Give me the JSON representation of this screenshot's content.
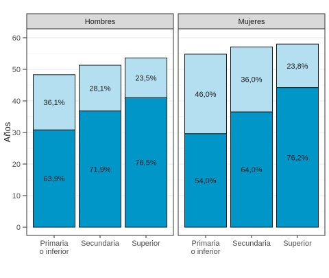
{
  "chart_data": {
    "type": "bar",
    "stacked": true,
    "facets": [
      "Hombres",
      "Mujeres"
    ],
    "categories": [
      "Primaria\no inferior",
      "Secundaria",
      "Superior"
    ],
    "ylabel": "Años",
    "ylim": [
      0,
      62
    ],
    "yticks": [
      0,
      10,
      20,
      30,
      40,
      50,
      60
    ],
    "grid": true,
    "colors": {
      "bottom": "#0096c8",
      "top": "#b4dff0",
      "outline": "#1a1a1a",
      "strip": "#d9d9d9"
    },
    "panels": [
      {
        "facet": "Hombres",
        "bottom_values": [
          30.8,
          36.8,
          41.0
        ],
        "totals": [
          48.3,
          51.3,
          53.6
        ],
        "bottom_labels": [
          "63,9%",
          "71,9%",
          "76,5%"
        ],
        "top_labels": [
          "36,1%",
          "28,1%",
          "23,5%"
        ]
      },
      {
        "facet": "Mujeres",
        "bottom_values": [
          29.6,
          36.5,
          44.2
        ],
        "totals": [
          54.8,
          57.1,
          58.0
        ],
        "bottom_labels": [
          "54,0%",
          "64,0%",
          "76,2%"
        ],
        "top_labels": [
          "46,0%",
          "36,0%",
          "23,8%"
        ]
      }
    ]
  }
}
